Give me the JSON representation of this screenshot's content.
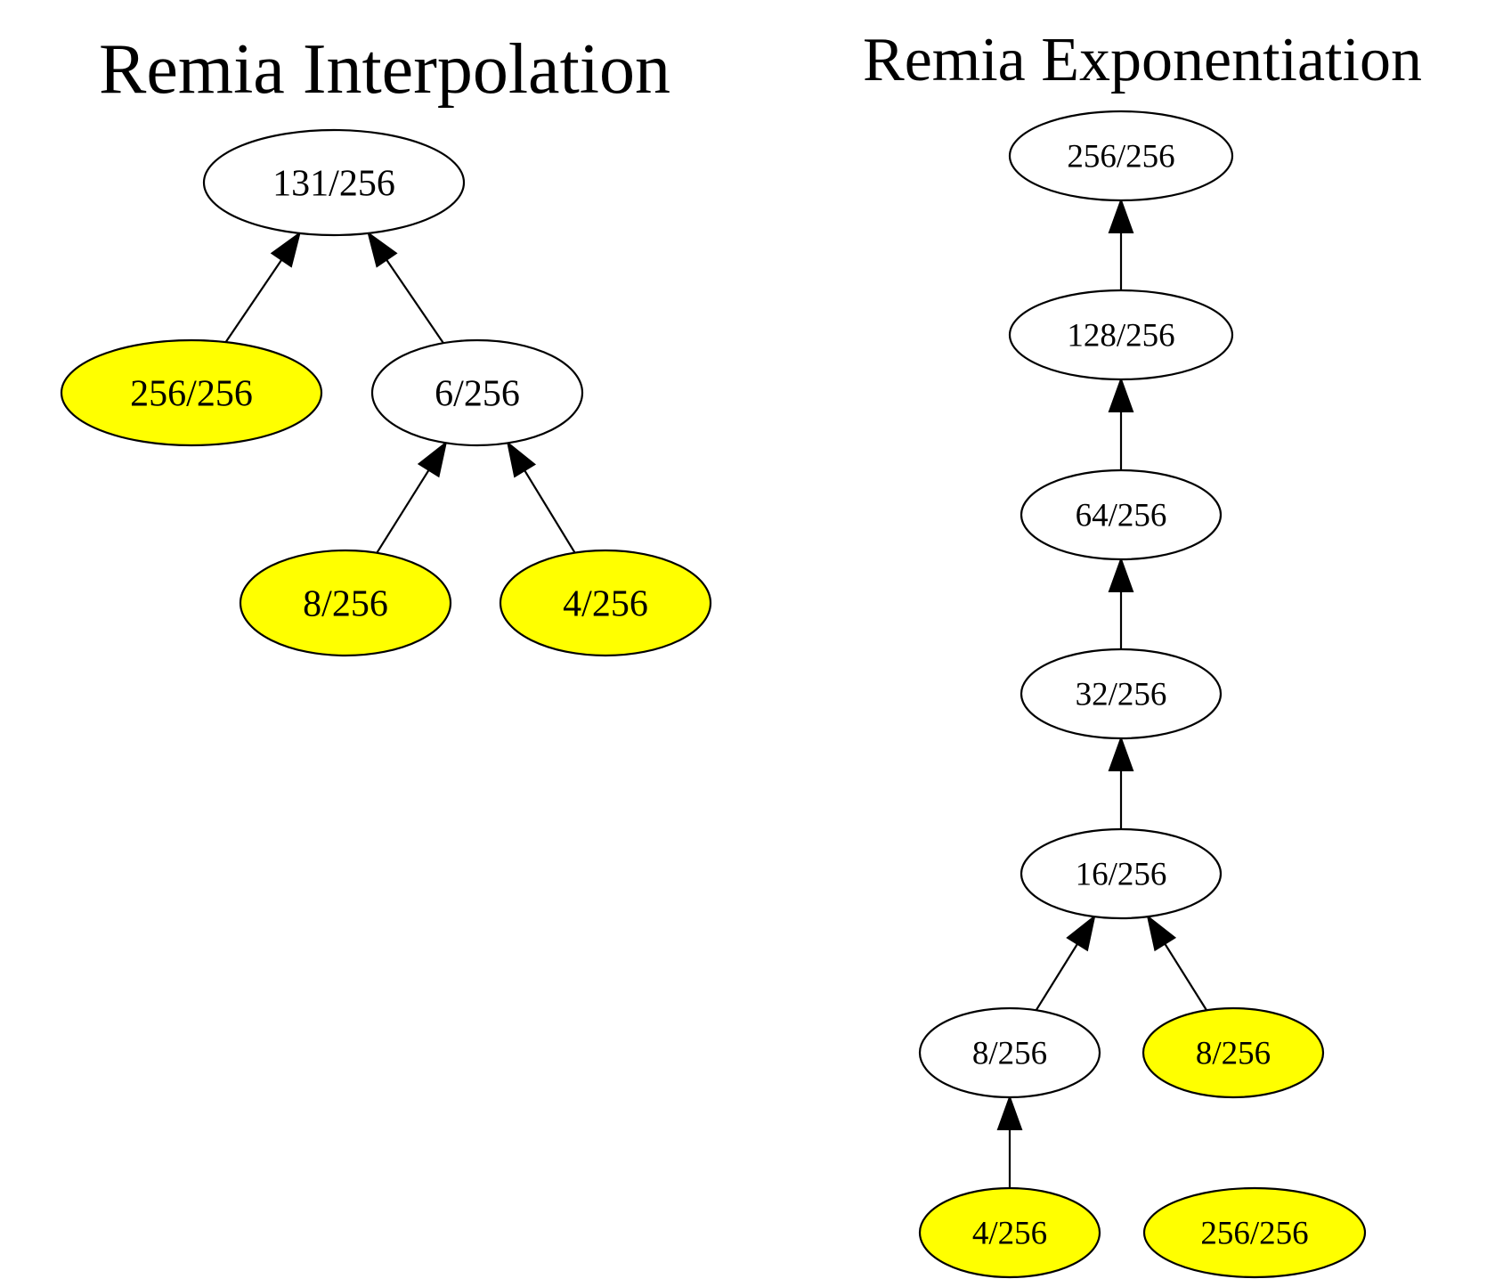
{
  "diagrams": [
    {
      "id": "interpolation",
      "title": "Remia Interpolation",
      "nodes": [
        {
          "id": "i_root",
          "label": "131/256",
          "highlighted": false
        },
        {
          "id": "i_a",
          "label": "256/256",
          "highlighted": true
        },
        {
          "id": "i_b",
          "label": "6/256",
          "highlighted": false
        },
        {
          "id": "i_c",
          "label": "8/256",
          "highlighted": true
        },
        {
          "id": "i_d",
          "label": "4/256",
          "highlighted": true
        }
      ],
      "edges": [
        {
          "from": "i_a",
          "to": "i_root"
        },
        {
          "from": "i_b",
          "to": "i_root"
        },
        {
          "from": "i_c",
          "to": "i_b"
        },
        {
          "from": "i_d",
          "to": "i_b"
        }
      ]
    },
    {
      "id": "exponentiation",
      "title": "Remia Exponentiation",
      "nodes": [
        {
          "id": "e1",
          "label": "256/256",
          "highlighted": false
        },
        {
          "id": "e2",
          "label": "128/256",
          "highlighted": false
        },
        {
          "id": "e3",
          "label": "64/256",
          "highlighted": false
        },
        {
          "id": "e4",
          "label": "32/256",
          "highlighted": false
        },
        {
          "id": "e5",
          "label": "16/256",
          "highlighted": false
        },
        {
          "id": "e6",
          "label": "8/256",
          "highlighted": false
        },
        {
          "id": "e7",
          "label": "8/256",
          "highlighted": true
        },
        {
          "id": "e8",
          "label": "4/256",
          "highlighted": true
        },
        {
          "id": "e9",
          "label": "256/256",
          "highlighted": true
        }
      ],
      "edges": [
        {
          "from": "e2",
          "to": "e1"
        },
        {
          "from": "e3",
          "to": "e2"
        },
        {
          "from": "e4",
          "to": "e3"
        },
        {
          "from": "e5",
          "to": "e4"
        },
        {
          "from": "e6",
          "to": "e5"
        },
        {
          "from": "e7",
          "to": "e5"
        },
        {
          "from": "e8",
          "to": "e6"
        }
      ]
    }
  ],
  "colors": {
    "highlight_fill": "#ffff00",
    "default_fill": "#ffffff",
    "stroke": "#000000"
  }
}
